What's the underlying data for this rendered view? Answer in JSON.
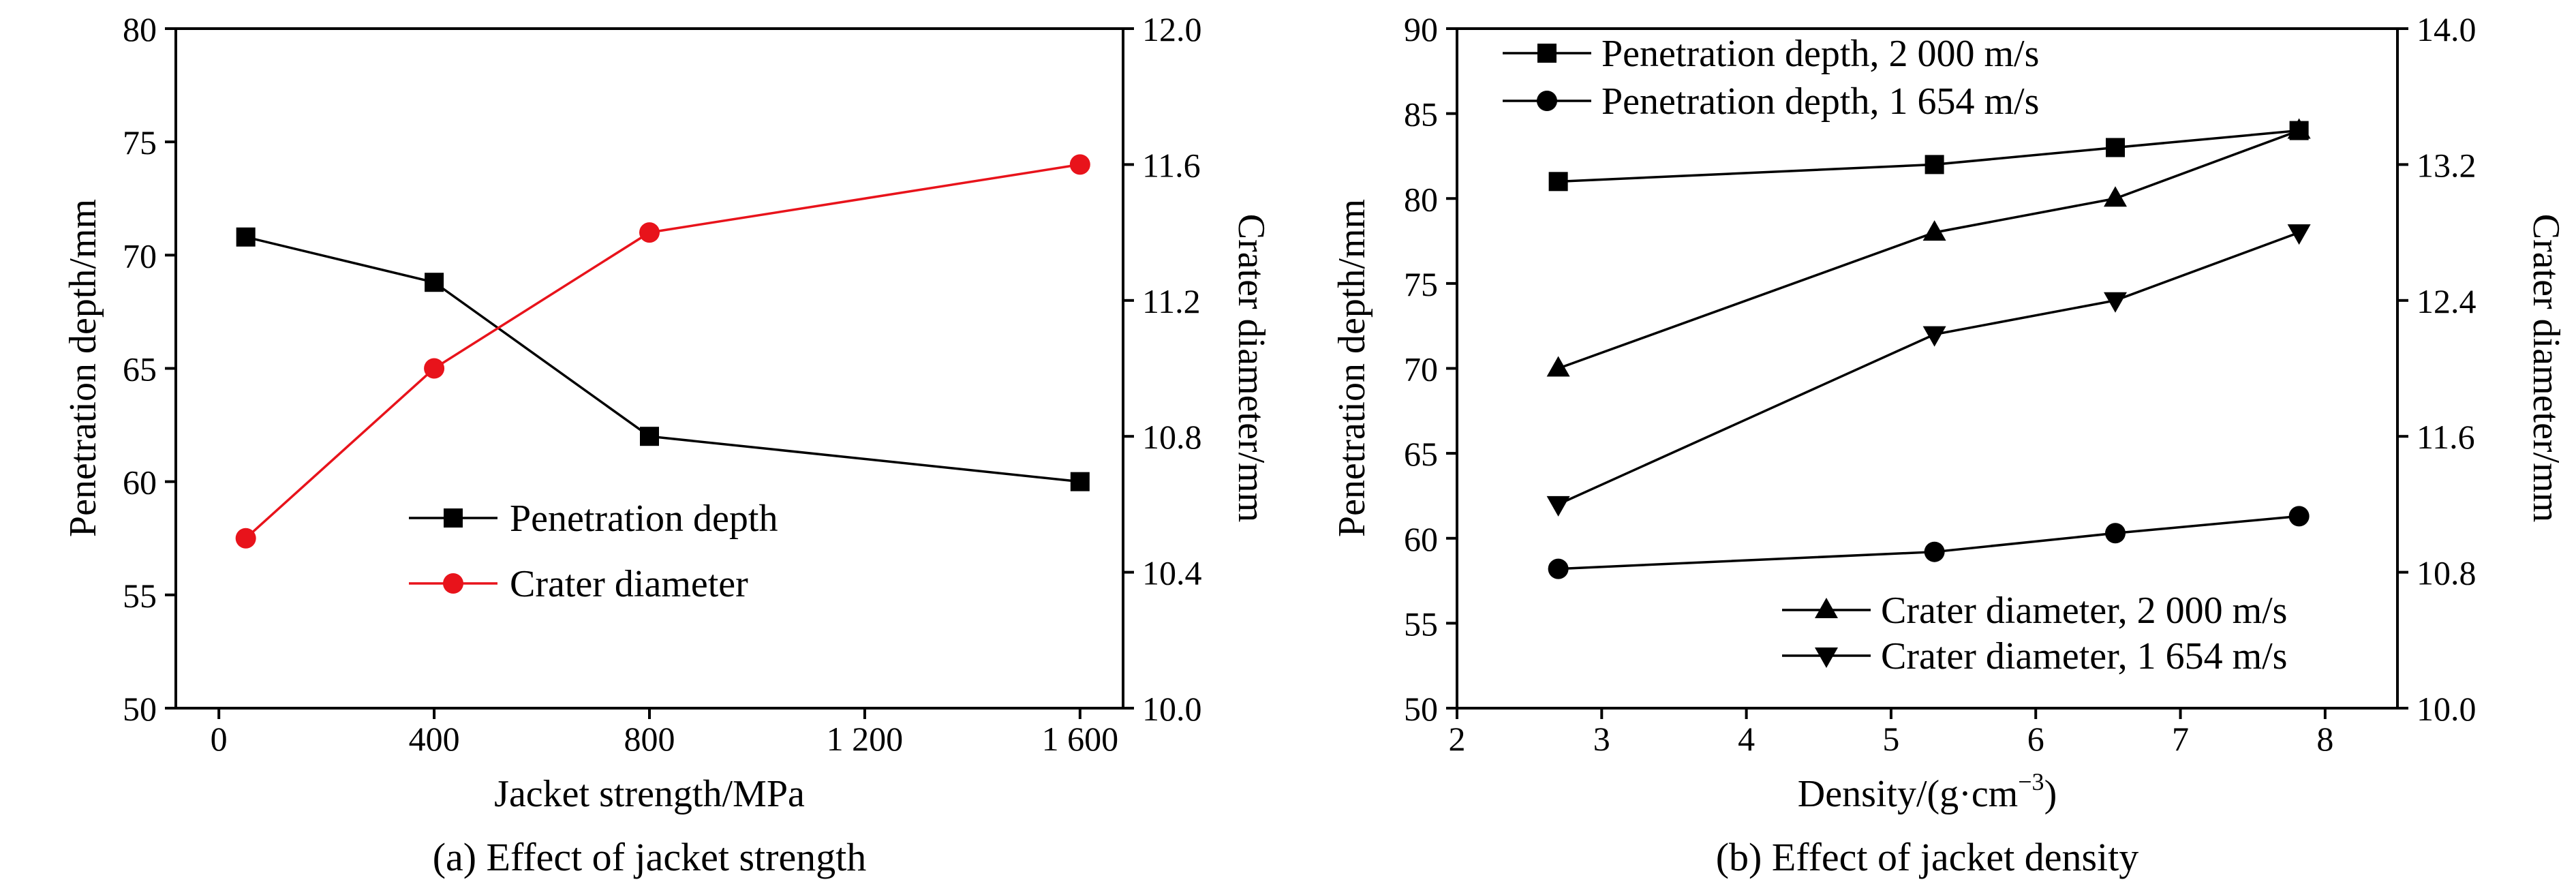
{
  "chart_data": [
    {
      "type": "line",
      "caption": "(a) Effect of jacket strength",
      "xlabel": "Jacket strength/MPa",
      "ylabel": "Penetration depth/mm",
      "y2label": "Crater diameter/mm",
      "xlim": [
        -80,
        1680
      ],
      "ylim": [
        50,
        80
      ],
      "y2lim": [
        10.0,
        12.0
      ],
      "xticks": [
        0,
        400,
        800,
        1200,
        1600
      ],
      "xtick_labels": [
        "0",
        "400",
        "800",
        "1 200",
        "1 600"
      ],
      "yticks": [
        "50",
        "55",
        "60",
        "65",
        "70",
        "75",
        "80"
      ],
      "y2ticks": [
        "10.0",
        "10.4",
        "10.8",
        "11.2",
        "11.6",
        "12.0"
      ],
      "legend_position": "lower-center",
      "series": [
        {
          "name": "Penetration depth",
          "axis": "left",
          "marker": "square",
          "color": "#000000",
          "x": [
            50,
            400,
            800,
            1600
          ],
          "y": [
            70.8,
            68.8,
            62.0,
            60.0
          ]
        },
        {
          "name": "Crater diameter",
          "axis": "right",
          "marker": "circle",
          "color": "#e8131b",
          "x": [
            50,
            400,
            800,
            1600
          ],
          "y": [
            10.5,
            11.0,
            11.4,
            11.6
          ]
        }
      ]
    },
    {
      "type": "line",
      "caption": "(b) Effect of jacket density",
      "xlabel": "Density/(g·cm",
      "xlabel_sup": "−3",
      "xlabel_end": ")",
      "ylabel": "Penetration depth/mm",
      "y2label": "Crater diameter/mm",
      "xlim": [
        2,
        8.5
      ],
      "ylim": [
        50,
        90
      ],
      "y2lim": [
        10.0,
        14.0
      ],
      "xticks": [
        2,
        3,
        4,
        5,
        6,
        7,
        8
      ],
      "xtick_labels": [
        "2",
        "3",
        "4",
        "5",
        "6",
        "7",
        "8"
      ],
      "yticks": [
        "50",
        "55",
        "60",
        "65",
        "70",
        "75",
        "80",
        "85",
        "90"
      ],
      "y2ticks": [
        "10.0",
        "10.8",
        "11.6",
        "12.4",
        "13.2",
        "14.0"
      ],
      "legend_position": "top-left and bottom-right",
      "series": [
        {
          "name": "Penetration depth, 2 000 m/s",
          "axis": "left",
          "marker": "square",
          "color": "#000000",
          "x": [
            2.7,
            5.3,
            6.55,
            7.82
          ],
          "y": [
            81,
            82,
            83,
            84
          ]
        },
        {
          "name": "Penetration depth, 1 654 m/s",
          "axis": "left",
          "marker": "circle",
          "color": "#000000",
          "x": [
            2.7,
            5.3,
            6.55,
            7.82
          ],
          "y": [
            58.2,
            59.2,
            60.3,
            61.3
          ]
        },
        {
          "name": "Crater diameter, 2 000 m/s",
          "axis": "right",
          "marker": "triangle-up",
          "color": "#000000",
          "x": [
            2.7,
            5.3,
            6.55,
            7.82
          ],
          "y": [
            12.0,
            12.8,
            13.0,
            13.4
          ]
        },
        {
          "name": "Crater diameter, 1 654 m/s",
          "axis": "right",
          "marker": "triangle-down",
          "color": "#000000",
          "x": [
            2.7,
            5.3,
            6.55,
            7.82
          ],
          "y": [
            11.2,
            12.2,
            12.4,
            12.8
          ]
        }
      ]
    }
  ]
}
